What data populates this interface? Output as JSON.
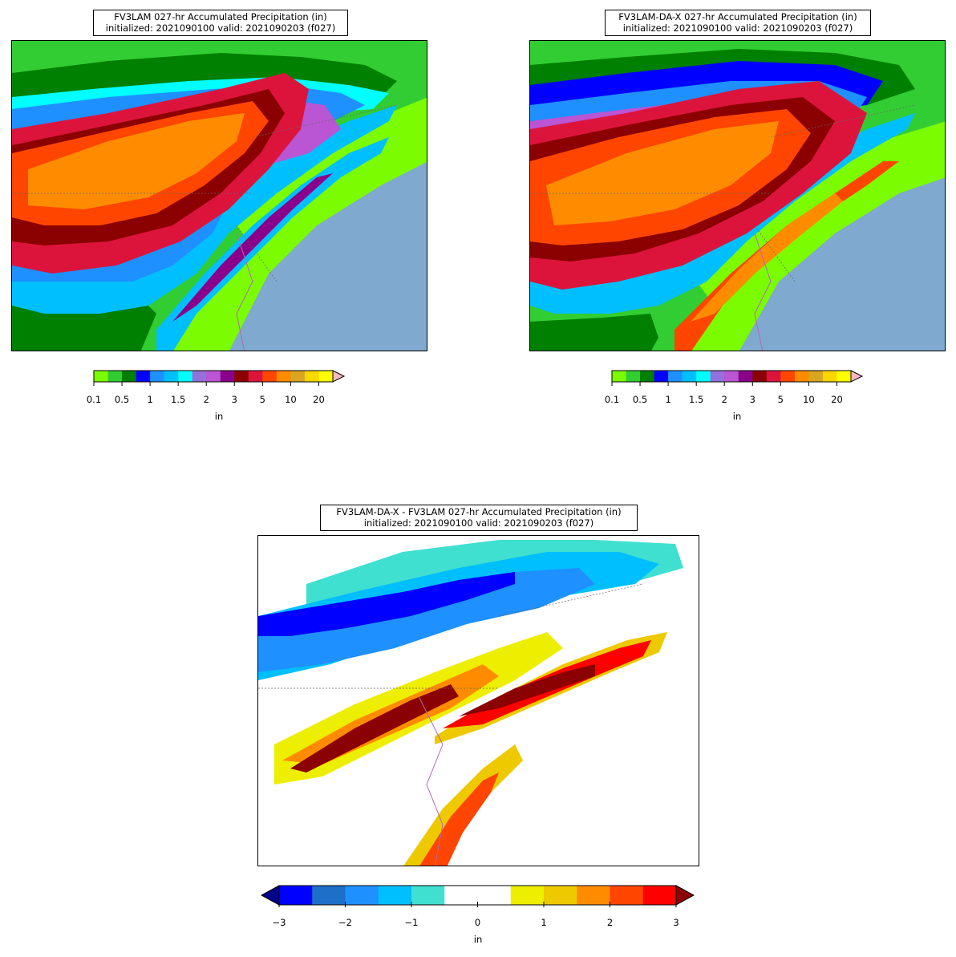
{
  "panels": [
    {
      "id": "fv3lam",
      "title_line1": "FV3LAM 027-hr Accumulated Precipitation (in)",
      "title_line2": "initialized: 2021090100 valid: 2021090203 (f027)",
      "units": "in"
    },
    {
      "id": "fv3lam-da-x",
      "title_line1": "FV3LAM-DA-X 027-hr Accumulated Precipitation (in)",
      "title_line2": "initialized: 2021090100 valid: 2021090203 (f027)",
      "units": "in"
    },
    {
      "id": "difference",
      "title_line1": "FV3LAM-DA-X - FV3LAM 027-hr Accumulated Precipitation (in)",
      "title_line2": "initialized: 2021090100 valid: 2021090203 (f027)",
      "units": "in"
    }
  ],
  "precip_colorbar": {
    "colors": [
      "#7cfc00",
      "#32cd32",
      "#008000",
      "#0000ff",
      "#1e90ff",
      "#00bfff",
      "#00ffff",
      "#9370db",
      "#ba55d3",
      "#8b008b",
      "#8b0000",
      "#dc143c",
      "#ff4500",
      "#ff8c00",
      "#daa520",
      "#ffd700",
      "#ffff00",
      "#ffb6c1"
    ],
    "tick_labels": [
      "0.1",
      "0.5",
      "1",
      "1.5",
      "2",
      "3",
      "5",
      "10",
      "20"
    ]
  },
  "diff_colorbar": {
    "colors": [
      "#00008b",
      "#0000ff",
      "#1e6fc8",
      "#1e90ff",
      "#00bfff",
      "#40e0d0",
      "#ffffff",
      "#ffffff",
      "#eeee00",
      "#eec900",
      "#ff8c00",
      "#ff4500",
      "#ff0000",
      "#8b0000"
    ],
    "tick_labels": [
      "−3",
      "−2",
      "−1",
      "0",
      "1",
      "2",
      "3"
    ]
  }
}
